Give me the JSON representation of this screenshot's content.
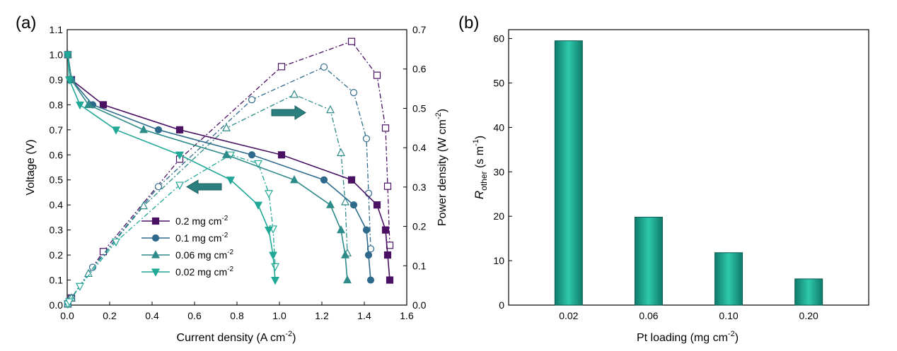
{
  "colors": {
    "s02": "#4a1163",
    "s01": "#2f6a8c",
    "s006": "#2d8b89",
    "s002": "#21a896",
    "bar_fill": "#1fb39a",
    "bar_edge": "#0c5e52",
    "arrow": "#2a7f7f"
  },
  "chart_data": [
    {
      "panel": "(a)",
      "type": "line",
      "xlabel": "Current density (A cm",
      "xlabel_sup": "-2",
      "xlabel_end": ")",
      "ylabel": "Voltage (V)",
      "y2label": "Power density (W cm",
      "y2label_sup": "-2",
      "y2label_end": ")",
      "xlim": [
        0,
        1.6
      ],
      "ylim": [
        0,
        1.1
      ],
      "y2lim": [
        0,
        0.7
      ],
      "xticks": [
        "0.0",
        "0.2",
        "0.4",
        "0.6",
        "0.8",
        "1.0",
        "1.2",
        "1.4",
        "1.6"
      ],
      "yticks": [
        "0.0",
        "0.1",
        "0.2",
        "0.3",
        "0.4",
        "0.5",
        "0.6",
        "0.7",
        "0.8",
        "0.9",
        "1.0",
        "1.1"
      ],
      "y2ticks": [
        "0.0",
        "0.1",
        "0.2",
        "0.3",
        "0.4",
        "0.5",
        "0.6",
        "0.7"
      ],
      "legend_placement": "lower-left",
      "legend": [
        {
          "text": "0.2 mg cm",
          "sup": "-2"
        },
        {
          "text": "0.1 mg cm",
          "sup": "-2"
        },
        {
          "text": "0.06 mg cm",
          "sup": "-2"
        },
        {
          "text": "0.02 mg cm",
          "sup": "-2"
        }
      ],
      "series": [
        {
          "name": "0.2 mg cm-2",
          "marker": "square",
          "polarization": {
            "x": [
              0.003,
              0.02,
              0.17,
              0.53,
              1.01,
              1.34,
              1.46,
              1.5,
              1.51,
              1.52
            ],
            "y": [
              1.0,
              0.9,
              0.8,
              0.7,
              0.6,
              0.5,
              0.4,
              0.3,
              0.2,
              0.1
            ]
          },
          "power": {
            "x": [
              0.003,
              0.02,
              0.17,
              0.53,
              1.01,
              1.34,
              1.46,
              1.5,
              1.51,
              1.52
            ],
            "y": [
              0.003,
              0.018,
              0.136,
              0.371,
              0.606,
              0.67,
              0.584,
              0.45,
              0.302,
              0.152
            ]
          }
        },
        {
          "name": "0.1 mg cm-2",
          "marker": "circle",
          "polarization": {
            "x": [
              0.003,
              0.02,
              0.12,
              0.43,
              0.87,
              1.21,
              1.35,
              1.41,
              1.42,
              1.43
            ],
            "y": [
              1.0,
              0.9,
              0.8,
              0.7,
              0.6,
              0.5,
              0.4,
              0.3,
              0.2,
              0.1
            ]
          },
          "power": {
            "x": [
              0.003,
              0.02,
              0.12,
              0.43,
              0.87,
              1.21,
              1.35,
              1.41,
              1.42,
              1.43
            ],
            "y": [
              0.003,
              0.018,
              0.096,
              0.301,
              0.522,
              0.605,
              0.54,
              0.423,
              0.284,
              0.143
            ]
          }
        },
        {
          "name": "0.06 mg cm-2",
          "marker": "triangle-up",
          "polarization": {
            "x": [
              0.003,
              0.02,
              0.1,
              0.36,
              0.75,
              1.07,
              1.24,
              1.29,
              1.31,
              1.32
            ],
            "y": [
              1.0,
              0.9,
              0.8,
              0.7,
              0.6,
              0.5,
              0.4,
              0.3,
              0.2,
              0.1
            ]
          },
          "power": {
            "x": [
              0.003,
              0.02,
              0.1,
              0.36,
              0.75,
              1.07,
              1.24,
              1.29,
              1.31,
              1.32
            ],
            "y": [
              0.003,
              0.018,
              0.08,
              0.252,
              0.45,
              0.535,
              0.496,
              0.387,
              0.262,
              0.132
            ]
          }
        },
        {
          "name": "0.02 mg cm-2",
          "marker": "triangle-down",
          "polarization": {
            "x": [
              0.003,
              0.01,
              0.06,
              0.23,
              0.53,
              0.77,
              0.9,
              0.95,
              0.97,
              0.98
            ],
            "y": [
              1.0,
              0.9,
              0.8,
              0.7,
              0.6,
              0.5,
              0.4,
              0.3,
              0.2,
              0.1
            ]
          },
          "power": {
            "x": [
              0.003,
              0.01,
              0.06,
              0.23,
              0.53,
              0.77,
              0.9,
              0.95,
              0.97,
              0.98
            ],
            "y": [
              0.003,
              0.009,
              0.048,
              0.161,
              0.305,
              0.382,
              0.36,
              0.284,
              0.194,
              0.098
            ]
          }
        }
      ]
    },
    {
      "panel": "(b)",
      "type": "bar",
      "categories": [
        "0.02",
        "0.06",
        "0.10",
        "0.20"
      ],
      "values": [
        59.5,
        19.8,
        11.8,
        5.9
      ],
      "xlabel": "Pt loading (mg cm",
      "xlabel_sup": "-2",
      "xlabel_end": ")",
      "ylabel_main": "R",
      "ylabel_sub": "other",
      "ylabel_rest": "  (s m",
      "ylabel_sup": "-1",
      "ylabel_end": ")",
      "ylim": [
        0,
        62
      ],
      "yticks": [
        "0",
        "10",
        "20",
        "30",
        "40",
        "50",
        "60"
      ]
    }
  ]
}
